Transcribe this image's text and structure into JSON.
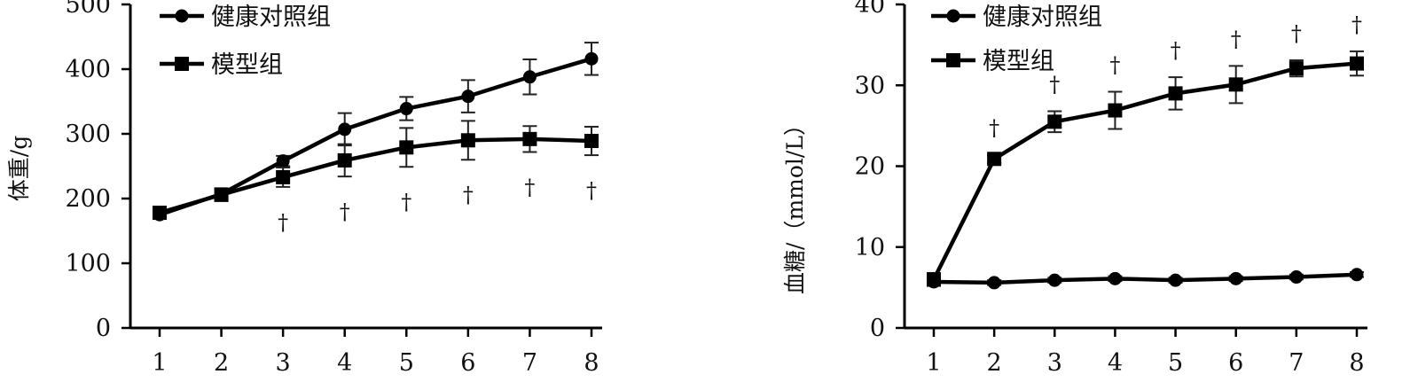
{
  "chart_data": [
    {
      "type": "line",
      "ylabel": "体重/g",
      "xlabel": "",
      "categories": [
        "1",
        "2",
        "3",
        "4",
        "5",
        "6",
        "7",
        "8"
      ],
      "x": [
        1,
        2,
        3,
        4,
        5,
        6,
        7,
        8
      ],
      "xlim": [
        1,
        8
      ],
      "ylim": [
        0,
        500
      ],
      "yticks": [
        0,
        100,
        200,
        300,
        400,
        500
      ],
      "grid": false,
      "legend": "top-left",
      "series": [
        {
          "name": "健康对照组",
          "marker": "circle",
          "values": [
            175,
            207,
            258,
            307,
            339,
            358,
            388,
            416
          ],
          "errors": [
            6,
            8,
            8,
            25,
            18,
            25,
            27,
            25
          ]
        },
        {
          "name": "模型组",
          "marker": "square",
          "values": [
            178,
            206,
            233,
            259,
            279,
            290,
            292,
            289
          ],
          "errors": [
            6,
            10,
            15,
            25,
            30,
            30,
            20,
            22
          ]
        }
      ],
      "annotations": [
        {
          "x": 3,
          "text": "†"
        },
        {
          "x": 4,
          "text": "†"
        },
        {
          "x": 5,
          "text": "†"
        },
        {
          "x": 6,
          "text": "†"
        },
        {
          "x": 7,
          "text": "†"
        },
        {
          "x": 8,
          "text": "†"
        }
      ]
    },
    {
      "type": "line",
      "ylabel": "血糖/（mmol/L）",
      "xlabel": "",
      "categories": [
        "1",
        "2",
        "3",
        "4",
        "5",
        "6",
        "7",
        "8"
      ],
      "x": [
        1,
        2,
        3,
        4,
        5,
        6,
        7,
        8
      ],
      "xlim": [
        1,
        8
      ],
      "ylim": [
        0,
        40
      ],
      "yticks": [
        0,
        10,
        20,
        30,
        40
      ],
      "grid": false,
      "legend": "top-left",
      "series": [
        {
          "name": "健康对照组",
          "marker": "circle",
          "values": [
            5.7,
            5.6,
            5.9,
            6.1,
            5.9,
            6.1,
            6.3,
            6.6
          ],
          "errors": [
            0.5,
            0.3,
            0.3,
            0.3,
            0.3,
            0.3,
            0.3,
            0.3
          ]
        },
        {
          "name": "模型组",
          "marker": "square",
          "values": [
            6.0,
            20.9,
            25.5,
            26.9,
            29.0,
            30.1,
            32.1,
            32.7
          ],
          "errors": [
            0.8,
            0.5,
            1.3,
            2.3,
            2.0,
            2.3,
            1.0,
            1.5
          ]
        }
      ],
      "annotations": [
        {
          "x": 2,
          "text": "†"
        },
        {
          "x": 3,
          "text": "†"
        },
        {
          "x": 4,
          "text": "†"
        },
        {
          "x": 5,
          "text": "†"
        },
        {
          "x": 6,
          "text": "†"
        },
        {
          "x": 7,
          "text": "†"
        },
        {
          "x": 8,
          "text": "†"
        }
      ]
    }
  ]
}
